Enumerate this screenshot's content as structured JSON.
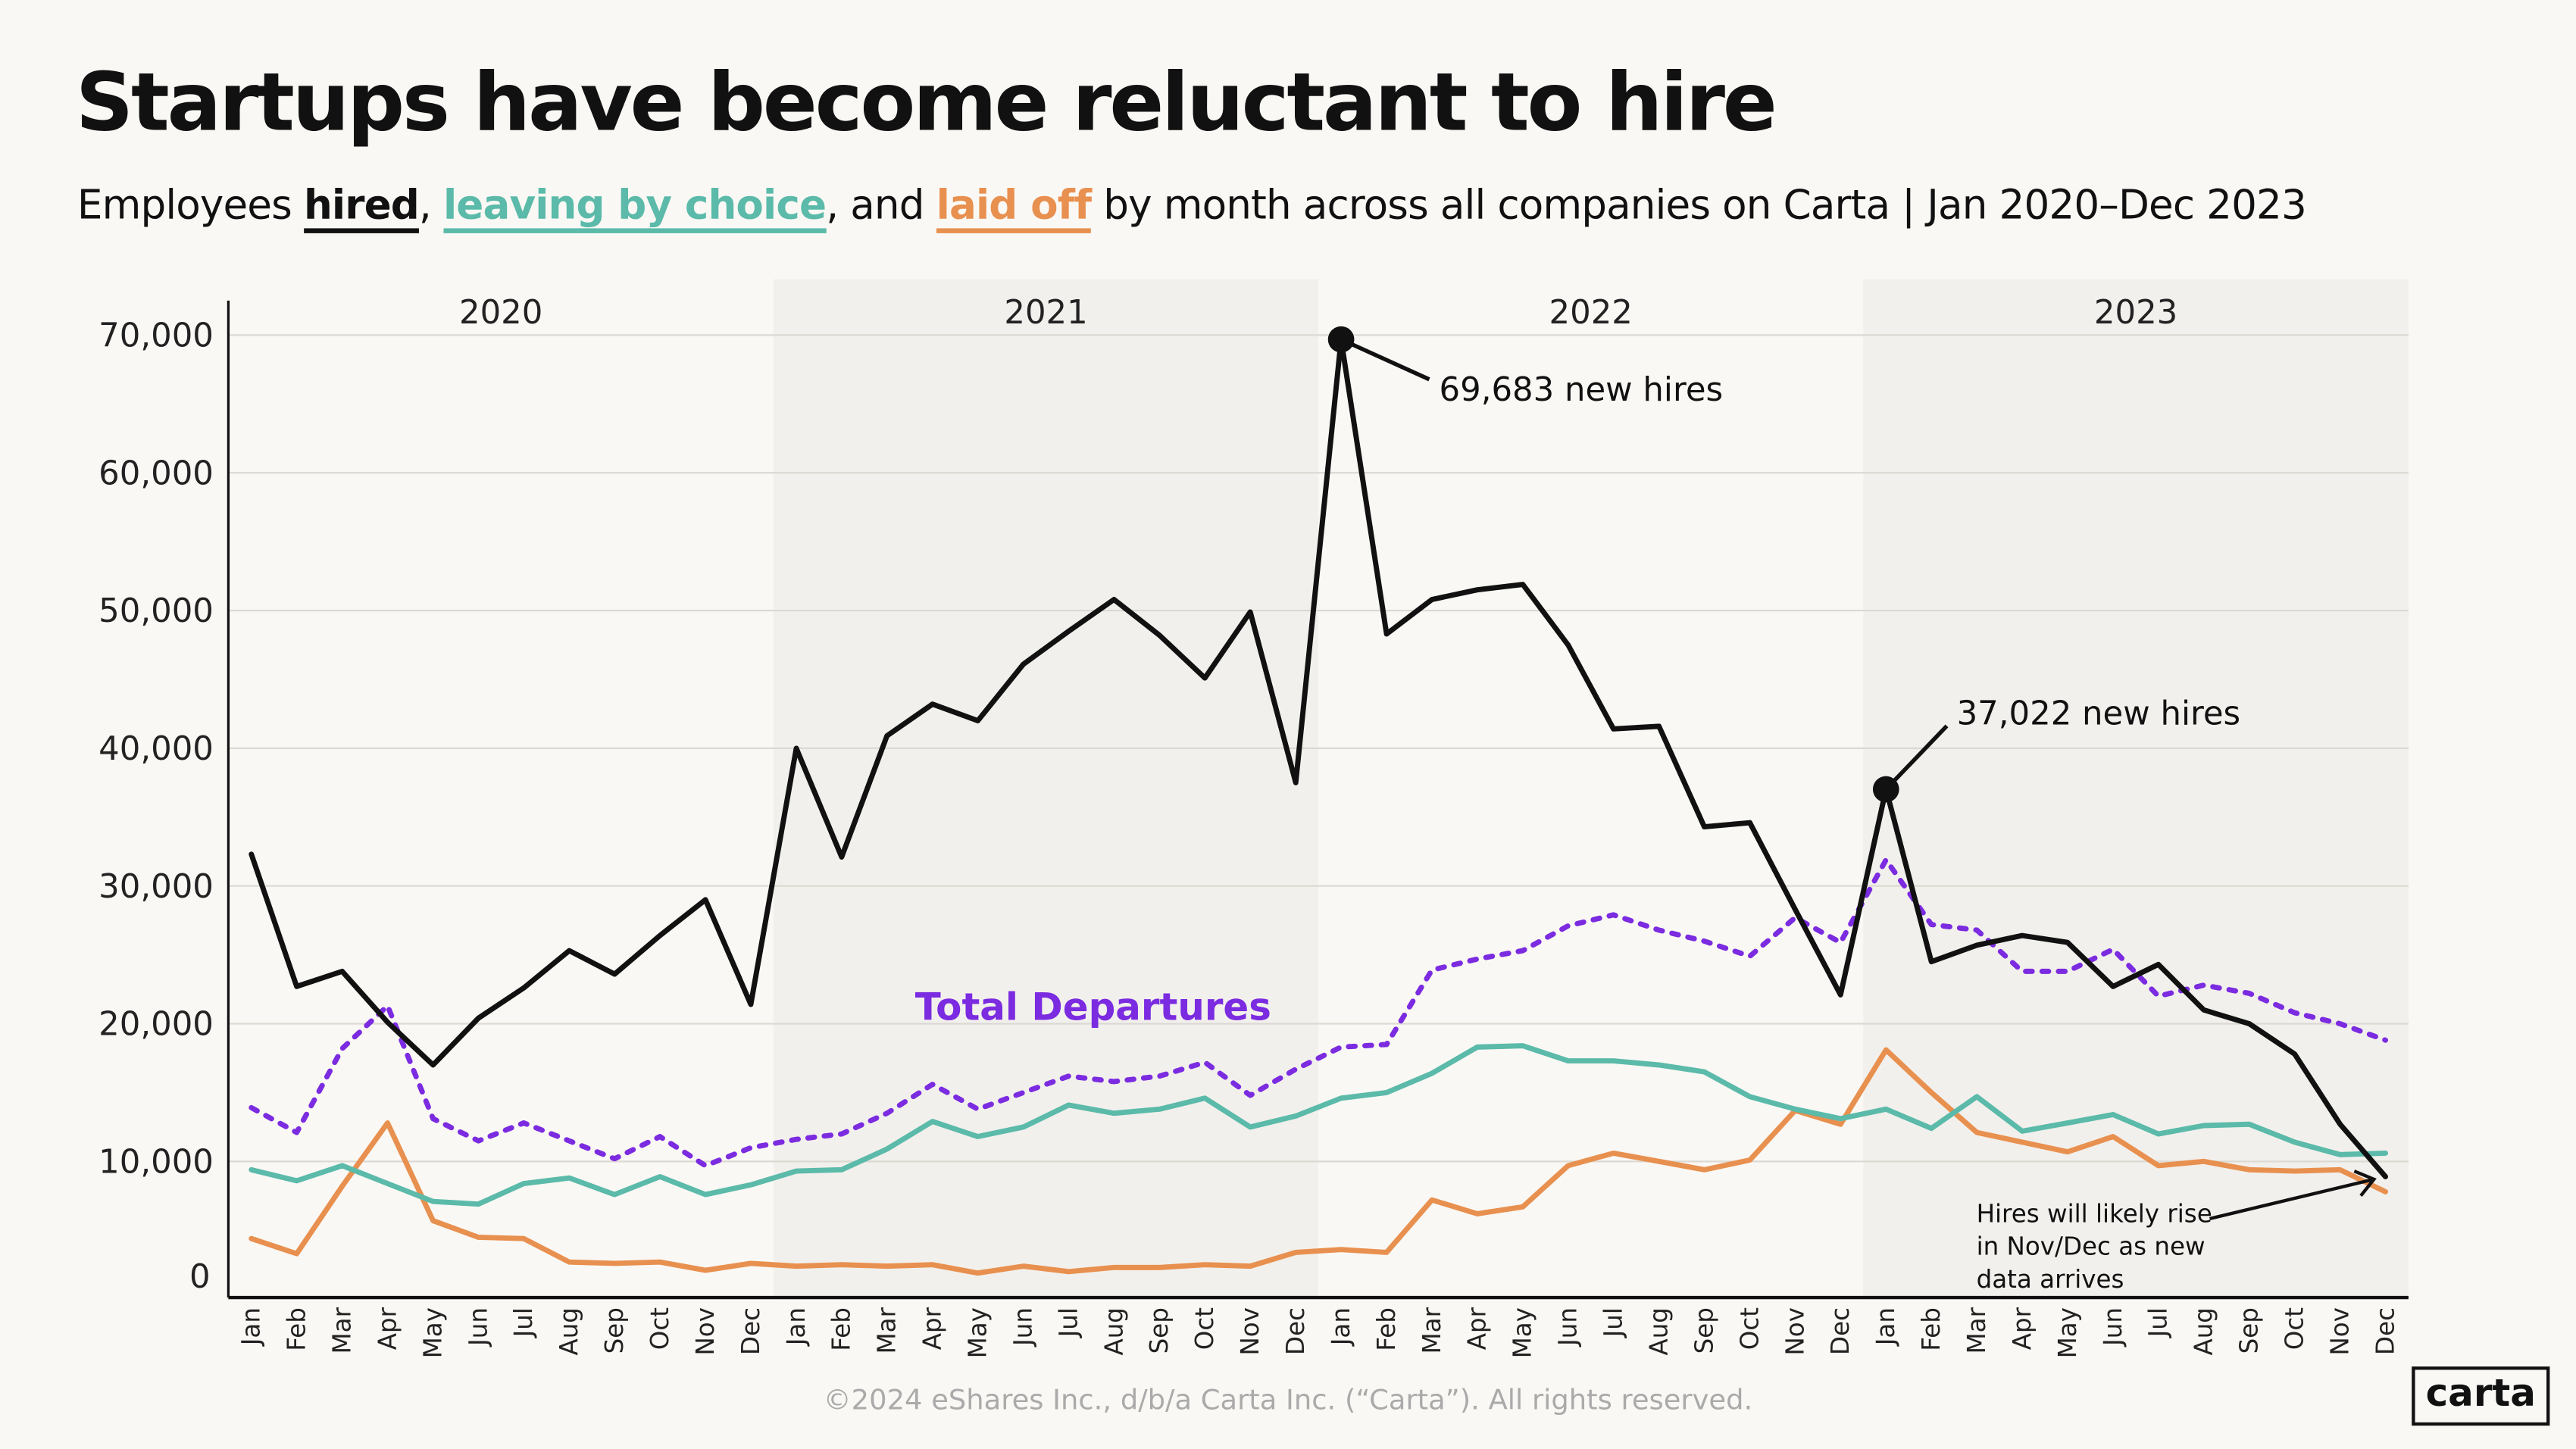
{
  "header": {
    "title": "Startups have become reluctant to hire",
    "subtitle_prefix": "Employees ",
    "subtitle_hired": "hired",
    "subtitle_sep1": ", ",
    "subtitle_leaving": "leaving by choice",
    "subtitle_sep2": ", and ",
    "subtitle_laid": "laid off",
    "subtitle_suffix": " by month across all companies on Carta | Jan 2020–Dec 2023"
  },
  "footer": {
    "copyright": "©2024 eShares Inc., d/b/a Carta Inc. (“Carta”). All rights reserved.",
    "logo": "carta"
  },
  "colors": {
    "hired": "#111111",
    "leaving": "#5bbaa9",
    "laid_off": "#e8904f",
    "total_departures": "#7b2be0",
    "background": "#faf8f4",
    "band": "#f2f0ec"
  },
  "chart_data": {
    "type": "line",
    "years": [
      "2020",
      "2021",
      "2022",
      "2023"
    ],
    "x": [
      "Jan",
      "Feb",
      "Mar",
      "Apr",
      "May",
      "Jun",
      "Jul",
      "Aug",
      "Sep",
      "Oct",
      "Nov",
      "Dec",
      "Jan",
      "Feb",
      "Mar",
      "Apr",
      "May",
      "Jun",
      "Jul",
      "Aug",
      "Sep",
      "Oct",
      "Nov",
      "Dec",
      "Jan",
      "Feb",
      "Mar",
      "Apr",
      "May",
      "Jun",
      "Jul",
      "Aug",
      "Sep",
      "Oct",
      "Nov",
      "Dec",
      "Jan",
      "Feb",
      "Mar",
      "Apr",
      "May",
      "Jun",
      "Jul",
      "Aug",
      "Sep",
      "Oct",
      "Nov",
      "Dec"
    ],
    "ylim": [
      0,
      70000
    ],
    "yticks": [
      "0",
      "10,000",
      "20,000",
      "30,000",
      "40,000",
      "50,000",
      "60,000",
      "70,000"
    ],
    "grid": true,
    "series": [
      {
        "key": "hired",
        "style": "solid",
        "values": [
          32300,
          22700,
          23800,
          20100,
          17000,
          20400,
          22600,
          25300,
          23600,
          26400,
          29000,
          21400,
          40000,
          32100,
          40900,
          43200,
          42000,
          46100,
          48500,
          50800,
          48200,
          45100,
          49900,
          37500,
          69683,
          48300,
          50800,
          51500,
          51900,
          47500,
          41400,
          41600,
          34300,
          34600,
          28300,
          22100,
          37022,
          24500,
          25700,
          26400,
          25900,
          22700,
          24300,
          21000,
          20000,
          17800,
          12700,
          8900
        ]
      },
      {
        "key": "total_departures",
        "name": "Total Departures",
        "style": "dashed",
        "values": [
          13900,
          12100,
          18200,
          21300,
          13100,
          11500,
          12800,
          11500,
          10200,
          11800,
          9700,
          11000,
          11600,
          12000,
          13500,
          15600,
          13800,
          15000,
          16200,
          15800,
          16200,
          17200,
          14800,
          16700,
          18300,
          18500,
          23900,
          24700,
          25300,
          27100,
          27900,
          26800,
          26000,
          24900,
          27700,
          25900,
          31900,
          27200,
          26800,
          23800,
          23800,
          25400,
          22000,
          22800,
          22200,
          20800,
          20000,
          18800
        ]
      },
      {
        "key": "leaving",
        "style": "solid",
        "values": [
          9400,
          8600,
          9700,
          8400,
          7100,
          6900,
          8400,
          8800,
          7600,
          8900,
          7600,
          8300,
          9300,
          9400,
          10900,
          12900,
          11800,
          12500,
          14100,
          13500,
          13800,
          14600,
          12500,
          13300,
          14600,
          15000,
          16400,
          18300,
          18400,
          17300,
          17300,
          17000,
          16500,
          14700,
          13800,
          13100,
          13800,
          12400,
          14700,
          12200,
          12800,
          13400,
          12000,
          12600,
          12700,
          11400,
          10500,
          10600
        ]
      },
      {
        "key": "laid_off",
        "style": "solid",
        "values": [
          4400,
          3300,
          8200,
          12800,
          5700,
          4500,
          4400,
          2700,
          2600,
          2700,
          2100,
          2600,
          2400,
          2500,
          2400,
          2500,
          1900,
          2400,
          2000,
          2300,
          2300,
          2500,
          2400,
          3400,
          3600,
          3400,
          7200,
          6200,
          6700,
          9700,
          10600,
          10000,
          9400,
          10100,
          13700,
          12700,
          18100,
          15000,
          12100,
          11400,
          10700,
          11800,
          9700,
          10000,
          9400,
          9300,
          9400,
          7800
        ]
      }
    ],
    "annotations": {
      "peak_2022": "69,683 new hires",
      "peak_2023": "37,022 new hires",
      "note_lines": [
        "Hires will likely rise",
        "in Nov/Dec as new",
        "data arrives"
      ]
    }
  }
}
